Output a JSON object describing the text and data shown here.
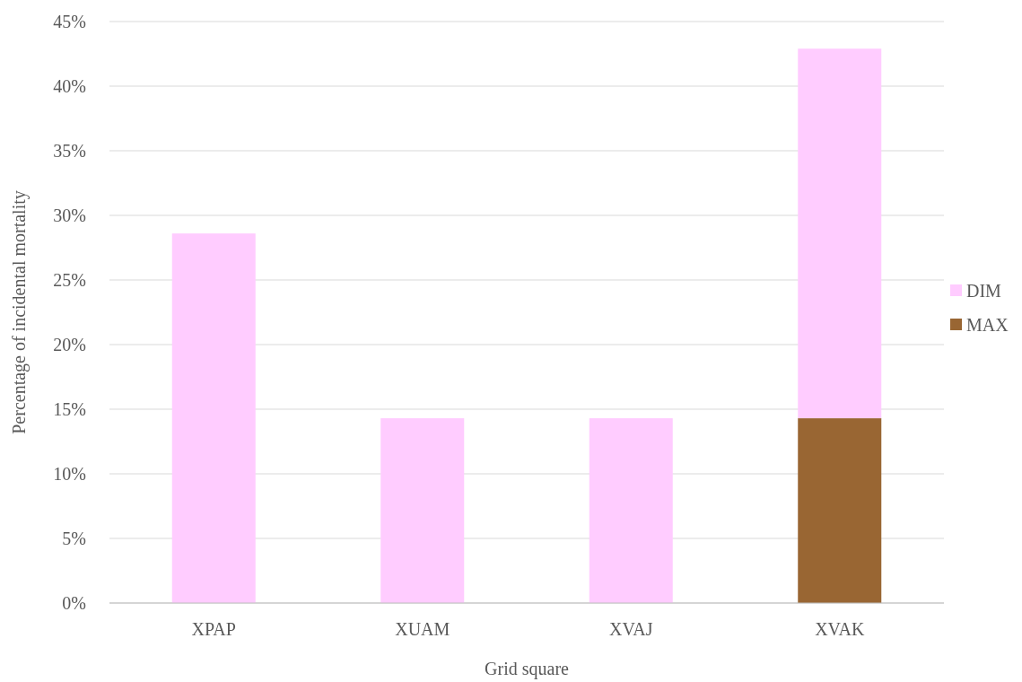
{
  "chart_data": {
    "type": "bar",
    "stacked": true,
    "xlabel": "Grid square",
    "ylabel": "Percentage of incidental mortality",
    "categories": [
      "XPAP",
      "XUAM",
      "XVAJ",
      "XVAK"
    ],
    "series": [
      {
        "name": "MAX",
        "color": "#996633",
        "values": [
          0,
          0,
          0,
          14.3
        ]
      },
      {
        "name": "DIM",
        "color": "#ffccff",
        "values": [
          28.6,
          14.3,
          14.3,
          28.6
        ]
      }
    ],
    "ylim": [
      0,
      45
    ],
    "yticks": [
      {
        "value": 0,
        "label": "0%"
      },
      {
        "value": 5,
        "label": "5%"
      },
      {
        "value": 10,
        "label": "10%"
      },
      {
        "value": 15,
        "label": "15%"
      },
      {
        "value": 20,
        "label": "20%"
      },
      {
        "value": 25,
        "label": "25%"
      },
      {
        "value": 30,
        "label": "30%"
      },
      {
        "value": 35,
        "label": "35%"
      },
      {
        "value": 40,
        "label": "40%"
      },
      {
        "value": 45,
        "label": "45%"
      }
    ],
    "grid": "y",
    "legend": "right"
  }
}
